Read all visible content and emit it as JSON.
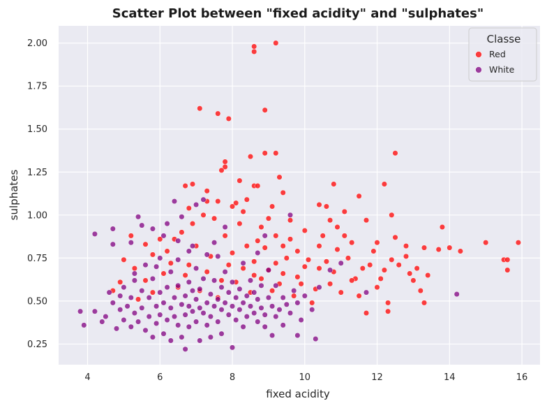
{
  "chart_data": {
    "type": "scatter",
    "title": "Scatter Plot between \"fixed acidity\" and \"sulphates\"",
    "xlabel": "fixed acidity",
    "ylabel": "sulphates",
    "xlim": [
      3.2,
      16.5
    ],
    "ylim": [
      0.13,
      2.1
    ],
    "x_ticks": [
      4,
      6,
      8,
      10,
      12,
      14,
      16
    ],
    "y_ticks": [
      0.25,
      0.5,
      0.75,
      1.0,
      1.25,
      1.5,
      1.75,
      2.0
    ],
    "x_tick_labels": [
      "4",
      "6",
      "8",
      "10",
      "12",
      "14",
      "16"
    ],
    "y_tick_labels": [
      "0.25",
      "0.50",
      "0.75",
      "1.00",
      "1.25",
      "1.50",
      "1.75",
      "2.00"
    ],
    "grid": true,
    "background": "#eaeaf2",
    "legend": {
      "title": "Classe",
      "position": "top-right",
      "entries": [
        "Red",
        "White"
      ]
    },
    "series": [
      {
        "name": "Red",
        "color": "#ff0000",
        "points": [
          [
            7.1,
            1.62
          ],
          [
            7.6,
            1.59
          ],
          [
            7.9,
            1.56
          ],
          [
            8.6,
            1.98
          ],
          [
            8.6,
            1.95
          ],
          [
            9.2,
            2.0
          ],
          [
            8.9,
            1.61
          ],
          [
            8.5,
            1.34
          ],
          [
            8.9,
            1.36
          ],
          [
            9.2,
            1.36
          ],
          [
            7.8,
            1.31
          ],
          [
            7.8,
            1.28
          ],
          [
            7.7,
            1.26
          ],
          [
            9.3,
            1.22
          ],
          [
            12.5,
            1.36
          ],
          [
            6.7,
            1.17
          ],
          [
            6.9,
            1.18
          ],
          [
            7.3,
            1.14
          ],
          [
            8.2,
            1.2
          ],
          [
            8.6,
            1.17
          ],
          [
            8.7,
            1.17
          ],
          [
            9.4,
            1.13
          ],
          [
            10.8,
            1.18
          ],
          [
            12.2,
            1.18
          ],
          [
            11.5,
            1.11
          ],
          [
            7.6,
            1.08
          ],
          [
            8.1,
            1.07
          ],
          [
            8.4,
            1.09
          ],
          [
            9.1,
            1.05
          ],
          [
            10.4,
            1.06
          ],
          [
            10.6,
            1.05
          ],
          [
            11.1,
            1.02
          ],
          [
            12.4,
            1.0
          ],
          [
            13.8,
            0.93
          ],
          [
            15.0,
            0.84
          ],
          [
            15.9,
            0.84
          ],
          [
            15.5,
            0.74
          ],
          [
            15.6,
            0.74
          ],
          [
            15.6,
            0.68
          ],
          [
            14.3,
            0.79
          ],
          [
            13.7,
            0.8
          ],
          [
            14.0,
            0.81
          ],
          [
            12.8,
            0.82
          ],
          [
            13.3,
            0.81
          ],
          [
            13.1,
            0.69
          ],
          [
            13.0,
            0.62
          ],
          [
            12.3,
            0.49
          ],
          [
            12.3,
            0.44
          ],
          [
            13.3,
            0.49
          ],
          [
            13.2,
            0.56
          ],
          [
            11.7,
            0.43
          ],
          [
            12.0,
            0.58
          ],
          [
            11.8,
            0.71
          ],
          [
            11.9,
            0.79
          ],
          [
            12.5,
            0.87
          ],
          [
            12.8,
            0.76
          ],
          [
            12.2,
            0.68
          ],
          [
            11.4,
            0.63
          ],
          [
            11.0,
            0.55
          ],
          [
            10.7,
            0.6
          ],
          [
            10.4,
            0.69
          ],
          [
            10.1,
            0.74
          ],
          [
            9.8,
            0.79
          ],
          [
            10.0,
            0.91
          ],
          [
            10.5,
            0.88
          ],
          [
            10.9,
            0.8
          ],
          [
            11.3,
            0.84
          ],
          [
            11.7,
            0.97
          ],
          [
            9.6,
            0.97
          ],
          [
            9.2,
            0.88
          ],
          [
            8.9,
            0.81
          ],
          [
            8.6,
            0.73
          ],
          [
            8.8,
            0.63
          ],
          [
            9.1,
            0.56
          ],
          [
            9.4,
            0.66
          ],
          [
            9.7,
            0.53
          ],
          [
            10.2,
            0.49
          ],
          [
            9.5,
            0.75
          ],
          [
            9.9,
            0.6
          ],
          [
            8.7,
            0.85
          ],
          [
            8.2,
            0.95
          ],
          [
            8.4,
            0.82
          ],
          [
            8.0,
            0.78
          ],
          [
            8.3,
            0.69
          ],
          [
            7.8,
            0.88
          ],
          [
            7.5,
            0.98
          ],
          [
            7.2,
            1.0
          ],
          [
            6.6,
            0.9
          ],
          [
            6.4,
            0.86
          ],
          [
            6.9,
            0.95
          ],
          [
            7.0,
            0.82
          ],
          [
            7.4,
            0.76
          ],
          [
            7.3,
            0.67
          ],
          [
            7.7,
            0.62
          ],
          [
            6.8,
            0.71
          ],
          [
            6.2,
            0.79
          ],
          [
            6.0,
            0.86
          ],
          [
            5.6,
            0.83
          ],
          [
            5.2,
            0.88
          ],
          [
            5.0,
            0.74
          ],
          [
            5.3,
            0.69
          ],
          [
            5.6,
            0.62
          ],
          [
            5.8,
            0.55
          ],
          [
            6.1,
            0.66
          ],
          [
            6.5,
            0.58
          ],
          [
            7.1,
            0.56
          ],
          [
            7.6,
            0.52
          ],
          [
            8.1,
            0.61
          ],
          [
            8.5,
            0.55
          ],
          [
            9.0,
            0.68
          ],
          [
            9.3,
            0.6
          ],
          [
            9.8,
            0.64
          ],
          [
            10.3,
            0.57
          ],
          [
            10.8,
            0.67
          ],
          [
            11.2,
            0.75
          ],
          [
            11.6,
            0.69
          ],
          [
            12.1,
            0.63
          ],
          [
            12.6,
            0.71
          ],
          [
            12.9,
            0.66
          ],
          [
            11.5,
            0.53
          ],
          [
            10.6,
            0.73
          ],
          [
            10.0,
            0.7
          ],
          [
            9.4,
            0.82
          ],
          [
            8.8,
            0.93
          ],
          [
            9.6,
            0.86
          ],
          [
            10.9,
            0.93
          ],
          [
            11.3,
            0.62
          ],
          [
            12.0,
            0.84
          ],
          [
            12.4,
            0.74
          ],
          [
            13.4,
            0.65
          ],
          [
            4.9,
            0.61
          ],
          [
            4.7,
            0.56
          ],
          [
            5.4,
            0.51
          ],
          [
            5.8,
            0.77
          ],
          [
            6.3,
            0.72
          ],
          [
            6.7,
            0.65
          ],
          [
            7.9,
            0.71
          ],
          [
            8.6,
            0.65
          ],
          [
            9.2,
            0.72
          ],
          [
            10.4,
            0.82
          ],
          [
            10.7,
            0.97
          ],
          [
            11.1,
            0.88
          ],
          [
            9.0,
            0.98
          ],
          [
            8.3,
            1.02
          ],
          [
            8.0,
            1.05
          ],
          [
            7.3,
            1.08
          ],
          [
            6.8,
            1.04
          ]
        ]
      },
      {
        "name": "White",
        "color": "#800080",
        "points": [
          [
            3.8,
            0.44
          ],
          [
            3.9,
            0.36
          ],
          [
            4.2,
            0.89
          ],
          [
            4.2,
            0.44
          ],
          [
            4.4,
            0.38
          ],
          [
            4.5,
            0.41
          ],
          [
            4.6,
            0.55
          ],
          [
            4.7,
            0.49
          ],
          [
            4.7,
            0.83
          ],
          [
            4.7,
            0.92
          ],
          [
            4.8,
            0.34
          ],
          [
            4.9,
            0.45
          ],
          [
            5.0,
            0.39
          ],
          [
            5.0,
            0.58
          ],
          [
            5.1,
            0.47
          ],
          [
            5.2,
            0.35
          ],
          [
            5.2,
            0.52
          ],
          [
            5.3,
            0.43
          ],
          [
            5.3,
            0.62
          ],
          [
            5.4,
            0.99
          ],
          [
            5.4,
            0.38
          ],
          [
            5.5,
            0.56
          ],
          [
            5.5,
            0.46
          ],
          [
            5.6,
            0.33
          ],
          [
            5.6,
            0.71
          ],
          [
            5.7,
            0.41
          ],
          [
            5.7,
            0.52
          ],
          [
            5.8,
            0.29
          ],
          [
            5.8,
            0.63
          ],
          [
            5.9,
            0.47
          ],
          [
            5.9,
            0.37
          ],
          [
            6.0,
            0.55
          ],
          [
            6.0,
            0.42
          ],
          [
            6.0,
            0.75
          ],
          [
            6.1,
            0.49
          ],
          [
            6.1,
            0.31
          ],
          [
            6.2,
            0.39
          ],
          [
            6.2,
            0.58
          ],
          [
            6.2,
            0.95
          ],
          [
            6.3,
            0.46
          ],
          [
            6.3,
            0.67
          ],
          [
            6.3,
            0.27
          ],
          [
            6.4,
            0.52
          ],
          [
            6.4,
            0.41
          ],
          [
            6.4,
            1.08
          ],
          [
            6.5,
            0.36
          ],
          [
            6.5,
            0.59
          ],
          [
            6.5,
            0.74
          ],
          [
            6.6,
            0.48
          ],
          [
            6.6,
            0.29
          ],
          [
            6.6,
            0.99
          ],
          [
            6.7,
            0.53
          ],
          [
            6.7,
            0.42
          ],
          [
            6.7,
            0.22
          ],
          [
            6.8,
            0.61
          ],
          [
            6.8,
            0.47
          ],
          [
            6.8,
            0.35
          ],
          [
            6.9,
            0.56
          ],
          [
            6.9,
            0.44
          ],
          [
            6.9,
            0.82
          ],
          [
            7.0,
            0.51
          ],
          [
            7.0,
            0.38
          ],
          [
            7.0,
            0.69
          ],
          [
            7.1,
            0.46
          ],
          [
            7.1,
            0.57
          ],
          [
            7.1,
            0.27
          ],
          [
            7.2,
            0.43
          ],
          [
            7.2,
            0.63
          ],
          [
            7.2,
            1.09
          ],
          [
            7.3,
            0.49
          ],
          [
            7.3,
            0.36
          ],
          [
            7.3,
            0.77
          ],
          [
            7.4,
            0.54
          ],
          [
            7.4,
            0.41
          ],
          [
            7.4,
            0.29
          ],
          [
            7.5,
            0.47
          ],
          [
            7.5,
            0.62
          ],
          [
            7.5,
            0.84
          ],
          [
            7.6,
            0.51
          ],
          [
            7.6,
            0.38
          ],
          [
            7.7,
            0.45
          ],
          [
            7.7,
            0.58
          ],
          [
            7.7,
            0.31
          ],
          [
            7.8,
            0.49
          ],
          [
            7.8,
            0.67
          ],
          [
            7.8,
            0.93
          ],
          [
            7.9,
            0.42
          ],
          [
            7.9,
            0.55
          ],
          [
            8.0,
            0.47
          ],
          [
            8.0,
            0.23
          ],
          [
            8.0,
            0.61
          ],
          [
            8.1,
            0.52
          ],
          [
            8.1,
            0.39
          ],
          [
            8.2,
            0.45
          ],
          [
            8.2,
            0.57
          ],
          [
            8.3,
            0.49
          ],
          [
            8.3,
            0.35
          ],
          [
            8.4,
            0.53
          ],
          [
            8.4,
            0.41
          ],
          [
            8.5,
            0.47
          ],
          [
            8.5,
            0.62
          ],
          [
            8.6,
            0.43
          ],
          [
            8.6,
            0.55
          ],
          [
            8.7,
            0.38
          ],
          [
            8.7,
            0.51
          ],
          [
            8.8,
            0.46
          ],
          [
            8.8,
            0.59
          ],
          [
            8.9,
            0.42
          ],
          [
            8.9,
            0.35
          ],
          [
            9.0,
            0.52
          ],
          [
            9.0,
            0.68
          ],
          [
            9.1,
            0.47
          ],
          [
            9.1,
            0.3
          ],
          [
            9.2,
            0.41
          ],
          [
            9.2,
            0.59
          ],
          [
            9.3,
            0.45
          ],
          [
            9.4,
            0.36
          ],
          [
            9.4,
            0.52
          ],
          [
            9.5,
            0.48
          ],
          [
            9.6,
            0.43
          ],
          [
            9.7,
            0.56
          ],
          [
            9.8,
            0.49
          ],
          [
            9.8,
            0.3
          ],
          [
            9.9,
            0.39
          ],
          [
            10.0,
            0.53
          ],
          [
            10.2,
            0.45
          ],
          [
            10.3,
            0.28
          ],
          [
            10.4,
            0.58
          ],
          [
            10.7,
            0.68
          ],
          [
            11.0,
            0.72
          ],
          [
            11.7,
            0.55
          ],
          [
            14.2,
            0.54
          ],
          [
            9.6,
            1.0
          ],
          [
            8.9,
            0.88
          ],
          [
            7.0,
            1.06
          ],
          [
            6.1,
            0.88
          ],
          [
            5.8,
            0.92
          ],
          [
            5.5,
            0.94
          ],
          [
            5.2,
            0.84
          ],
          [
            6.5,
            0.85
          ],
          [
            7.6,
            0.76
          ],
          [
            8.3,
            0.72
          ],
          [
            8.7,
            0.78
          ],
          [
            6.8,
            0.79
          ],
          [
            5.9,
            0.7
          ],
          [
            5.3,
            0.66
          ],
          [
            4.9,
            0.53
          ]
        ]
      }
    ]
  }
}
